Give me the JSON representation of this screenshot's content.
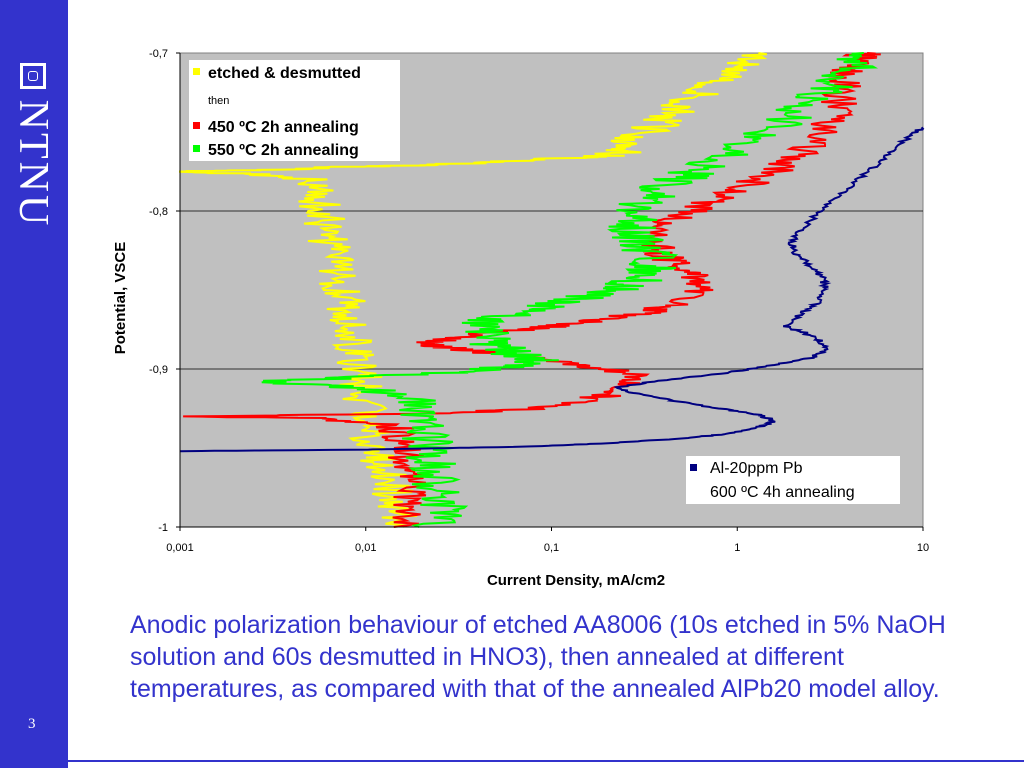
{
  "slide": {
    "page_number": "3",
    "logo_text": "NTNU",
    "caption": "Anodic polarization behaviour of etched AA8006 (10s etched in 5% NaOH solution and 60s desmutted in HNO3), then annealed at different temperatures, as compared with that of the annealed AlPb20 model alloy."
  },
  "colors": {
    "sidebar": "#3333cc",
    "plot_bg": "#c0c0c0",
    "caption_text": "#3333cc"
  },
  "chart_data": {
    "type": "line",
    "x_scale": "log",
    "xlabel": "Current Density, mA/cm2",
    "ylabel": "Potential, VSCE",
    "xlim": [
      0.001,
      10
    ],
    "ylim": [
      -1.0,
      -0.7
    ],
    "x_ticks": [
      "0,001",
      "0,01",
      "0,1",
      "1",
      "10"
    ],
    "y_ticks": [
      "-0,7",
      "-0,8",
      "-0,9",
      "-1"
    ],
    "grid": "horizontal",
    "legends": [
      {
        "placement": "top-left",
        "entries": [
          {
            "label": "etched & desmutted",
            "color": "#ffff00"
          },
          {
            "label": "then",
            "color": null
          },
          {
            "label": "450 ºC 2h annealing",
            "color": "#ff0000"
          },
          {
            "label": "550 ºC 2h annealing",
            "color": "#00ff00"
          }
        ]
      },
      {
        "placement": "bottom-right",
        "entries": [
          {
            "label": "Al-20ppm Pb",
            "color": "#000080"
          },
          {
            "label": "600 ºC 4h annealing",
            "color": null
          }
        ]
      }
    ],
    "series": [
      {
        "name": "etched & desmutted",
        "color": "#ffff00",
        "noise": 0.12,
        "points": [
          [
            0.016,
            -1.0
          ],
          [
            0.015,
            -0.99
          ],
          [
            0.014,
            -0.98
          ],
          [
            0.013,
            -0.97
          ],
          [
            0.012,
            -0.96
          ],
          [
            0.011,
            -0.95
          ],
          [
            0.0105,
            -0.94
          ],
          [
            0.01,
            -0.93
          ],
          [
            0.0098,
            -0.92
          ],
          [
            0.0095,
            -0.91
          ],
          [
            0.0092,
            -0.9
          ],
          [
            0.009,
            -0.89
          ],
          [
            0.0088,
            -0.88
          ],
          [
            0.0085,
            -0.87
          ],
          [
            0.008,
            -0.86
          ],
          [
            0.0075,
            -0.85
          ],
          [
            0.007,
            -0.84
          ],
          [
            0.0066,
            -0.83
          ],
          [
            0.0062,
            -0.82
          ],
          [
            0.006,
            -0.81
          ],
          [
            0.0058,
            -0.8
          ],
          [
            0.0055,
            -0.79
          ],
          [
            0.005,
            -0.78
          ],
          [
            0.003,
            -0.777
          ],
          [
            0.001,
            -0.775
          ],
          [
            0.003,
            -0.774
          ],
          [
            0.008,
            -0.772
          ],
          [
            0.02,
            -0.771
          ],
          [
            0.05,
            -0.769
          ],
          [
            0.1,
            -0.767
          ],
          [
            0.2,
            -0.765
          ],
          [
            0.25,
            -0.762
          ],
          [
            0.26,
            -0.758
          ],
          [
            0.3,
            -0.752
          ],
          [
            0.38,
            -0.745
          ],
          [
            0.45,
            -0.738
          ],
          [
            0.55,
            -0.73
          ],
          [
            0.7,
            -0.722
          ],
          [
            0.85,
            -0.715
          ],
          [
            1.05,
            -0.708
          ],
          [
            1.3,
            -0.7
          ]
        ]
      },
      {
        "name": "450 ºC 2h annealing",
        "color": "#ff0000",
        "noise": 0.1,
        "points": [
          [
            0.017,
            -1.0
          ],
          [
            0.018,
            -0.99
          ],
          [
            0.017,
            -0.98
          ],
          [
            0.018,
            -0.97
          ],
          [
            0.017,
            -0.96
          ],
          [
            0.016,
            -0.95
          ],
          [
            0.015,
            -0.94
          ],
          [
            0.014,
            -0.935
          ],
          [
            0.005,
            -0.931
          ],
          [
            0.001,
            -0.93
          ],
          [
            0.03,
            -0.928
          ],
          [
            0.08,
            -0.925
          ],
          [
            0.15,
            -0.92
          ],
          [
            0.22,
            -0.915
          ],
          [
            0.27,
            -0.91
          ],
          [
            0.3,
            -0.905
          ],
          [
            0.2,
            -0.9
          ],
          [
            0.1,
            -0.895
          ],
          [
            0.05,
            -0.89
          ],
          [
            0.03,
            -0.887
          ],
          [
            0.02,
            -0.884
          ],
          [
            0.03,
            -0.881
          ],
          [
            0.04,
            -0.878
          ],
          [
            0.07,
            -0.875
          ],
          [
            0.12,
            -0.872
          ],
          [
            0.2,
            -0.868
          ],
          [
            0.33,
            -0.864
          ],
          [
            0.5,
            -0.858
          ],
          [
            0.63,
            -0.85
          ],
          [
            0.6,
            -0.842
          ],
          [
            0.48,
            -0.835
          ],
          [
            0.4,
            -0.828
          ],
          [
            0.36,
            -0.82
          ],
          [
            0.38,
            -0.812
          ],
          [
            0.45,
            -0.805
          ],
          [
            0.6,
            -0.798
          ],
          [
            0.85,
            -0.79
          ],
          [
            1.2,
            -0.782
          ],
          [
            1.6,
            -0.775
          ],
          [
            2.0,
            -0.767
          ],
          [
            2.5,
            -0.758
          ],
          [
            3.0,
            -0.748
          ],
          [
            3.4,
            -0.738
          ],
          [
            3.6,
            -0.728
          ],
          [
            3.8,
            -0.718
          ],
          [
            4.0,
            -0.71
          ],
          [
            4.5,
            -0.703
          ],
          [
            5.0,
            -0.7
          ]
        ]
      },
      {
        "name": "550 ºC 2h annealing",
        "color": "#00ff00",
        "noise": 0.14,
        "points": [
          [
            0.025,
            -1.0
          ],
          [
            0.026,
            -0.99
          ],
          [
            0.025,
            -0.98
          ],
          [
            0.024,
            -0.97
          ],
          [
            0.023,
            -0.96
          ],
          [
            0.022,
            -0.95
          ],
          [
            0.021,
            -0.94
          ],
          [
            0.02,
            -0.93
          ],
          [
            0.018,
            -0.92
          ],
          [
            0.01,
            -0.912
          ],
          [
            0.003,
            -0.908
          ],
          [
            0.01,
            -0.905
          ],
          [
            0.03,
            -0.902
          ],
          [
            0.06,
            -0.898
          ],
          [
            0.09,
            -0.895
          ],
          [
            0.07,
            -0.892
          ],
          [
            0.06,
            -0.889
          ],
          [
            0.05,
            -0.885
          ],
          [
            0.045,
            -0.878
          ],
          [
            0.045,
            -0.87
          ],
          [
            0.06,
            -0.865
          ],
          [
            0.09,
            -0.86
          ],
          [
            0.15,
            -0.855
          ],
          [
            0.22,
            -0.85
          ],
          [
            0.28,
            -0.845
          ],
          [
            0.33,
            -0.84
          ],
          [
            0.35,
            -0.835
          ],
          [
            0.34,
            -0.828
          ],
          [
            0.3,
            -0.82
          ],
          [
            0.28,
            -0.812
          ],
          [
            0.28,
            -0.805
          ],
          [
            0.3,
            -0.798
          ],
          [
            0.35,
            -0.79
          ],
          [
            0.45,
            -0.782
          ],
          [
            0.6,
            -0.775
          ],
          [
            0.8,
            -0.767
          ],
          [
            1.1,
            -0.758
          ],
          [
            1.5,
            -0.748
          ],
          [
            2.0,
            -0.738
          ],
          [
            2.6,
            -0.728
          ],
          [
            3.2,
            -0.72
          ],
          [
            3.8,
            -0.712
          ],
          [
            4.3,
            -0.705
          ],
          [
            4.8,
            -0.7
          ]
        ]
      },
      {
        "name": "Al-20ppm Pb",
        "color": "#000080",
        "noise": 0.02,
        "points": [
          [
            0.001,
            -0.952
          ],
          [
            0.01,
            -0.951
          ],
          [
            0.03,
            -0.95
          ],
          [
            0.08,
            -0.949
          ],
          [
            0.2,
            -0.947
          ],
          [
            0.5,
            -0.944
          ],
          [
            0.9,
            -0.941
          ],
          [
            1.3,
            -0.937
          ],
          [
            1.6,
            -0.933
          ],
          [
            1.3,
            -0.929
          ],
          [
            0.8,
            -0.925
          ],
          [
            0.45,
            -0.92
          ],
          [
            0.3,
            -0.916
          ],
          [
            0.22,
            -0.912
          ],
          [
            0.35,
            -0.908
          ],
          [
            0.8,
            -0.903
          ],
          [
            1.5,
            -0.898
          ],
          [
            2.5,
            -0.893
          ],
          [
            3.0,
            -0.888
          ],
          [
            2.8,
            -0.882
          ],
          [
            2.3,
            -0.877
          ],
          [
            1.8,
            -0.873
          ],
          [
            2.2,
            -0.865
          ],
          [
            2.7,
            -0.858
          ],
          [
            3.0,
            -0.85
          ],
          [
            2.9,
            -0.843
          ],
          [
            2.5,
            -0.835
          ],
          [
            2.1,
            -0.828
          ],
          [
            1.95,
            -0.82
          ],
          [
            2.2,
            -0.812
          ],
          [
            2.8,
            -0.8
          ],
          [
            3.5,
            -0.79
          ],
          [
            4.5,
            -0.78
          ],
          [
            5.8,
            -0.77
          ],
          [
            7.2,
            -0.76
          ],
          [
            8.5,
            -0.752
          ],
          [
            10.0,
            -0.747
          ]
        ]
      }
    ]
  }
}
